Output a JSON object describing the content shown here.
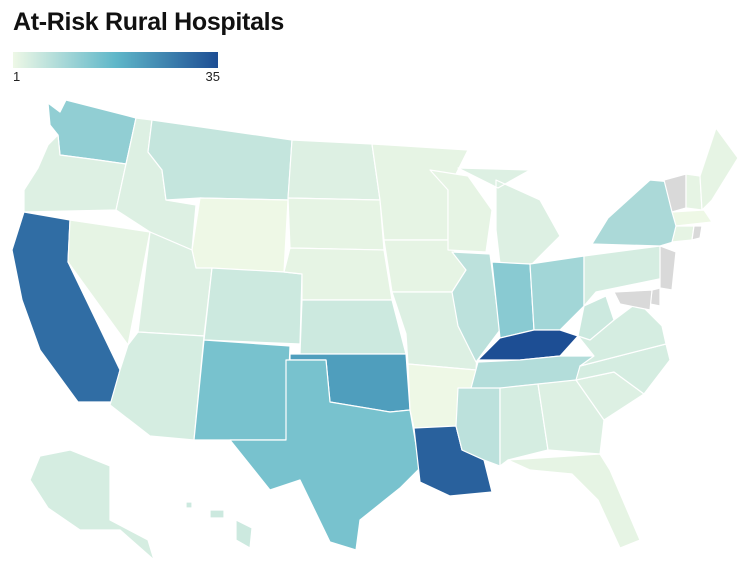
{
  "title": "At-Risk Rural Hospitals",
  "legend": {
    "min_label": "1",
    "max_label": "35",
    "color_low": "#eef8e6",
    "color_mid": "#5fb7c9",
    "color_high": "#1d4e94"
  },
  "colors": {
    "no_data": "#d9d9d9",
    "border": "#ffffff"
  },
  "map_data": {
    "type": "choropleth",
    "region": "United States",
    "value_range": [
      1,
      35
    ],
    "states": [
      {
        "id": "WA",
        "value": 12
      },
      {
        "id": "OR",
        "value": 3
      },
      {
        "id": "CA",
        "value": 30
      },
      {
        "id": "NV",
        "value": 2
      },
      {
        "id": "ID",
        "value": 3
      },
      {
        "id": "MT",
        "value": 6
      },
      {
        "id": "WY",
        "value": 1
      },
      {
        "id": "UT",
        "value": 3
      },
      {
        "id": "AZ",
        "value": 4
      },
      {
        "id": "CO",
        "value": 5
      },
      {
        "id": "NM",
        "value": 15
      },
      {
        "id": "ND",
        "value": 3
      },
      {
        "id": "SD",
        "value": 2
      },
      {
        "id": "NE",
        "value": 2
      },
      {
        "id": "KS",
        "value": 5
      },
      {
        "id": "OK",
        "value": 22
      },
      {
        "id": "TX",
        "value": 15
      },
      {
        "id": "MN",
        "value": 2
      },
      {
        "id": "IA",
        "value": 2
      },
      {
        "id": "MO",
        "value": 3
      },
      {
        "id": "AR",
        "value": 1
      },
      {
        "id": "LA",
        "value": 32
      },
      {
        "id": "WI",
        "value": 2
      },
      {
        "id": "IL",
        "value": 7
      },
      {
        "id": "MI",
        "value": 3
      },
      {
        "id": "IN",
        "value": 13
      },
      {
        "id": "OH",
        "value": 10
      },
      {
        "id": "KY",
        "value": 35
      },
      {
        "id": "TN",
        "value": 8
      },
      {
        "id": "MS",
        "value": 7
      },
      {
        "id": "AL",
        "value": 4
      },
      {
        "id": "GA",
        "value": 3
      },
      {
        "id": "FL",
        "value": 2
      },
      {
        "id": "SC",
        "value": 3
      },
      {
        "id": "NC",
        "value": 4
      },
      {
        "id": "VA",
        "value": 4
      },
      {
        "id": "WV",
        "value": 5
      },
      {
        "id": "PA",
        "value": 4
      },
      {
        "id": "NY",
        "value": 9
      },
      {
        "id": "VT",
        "value": null
      },
      {
        "id": "NH",
        "value": 2
      },
      {
        "id": "ME",
        "value": 2
      },
      {
        "id": "MA",
        "value": 1
      },
      {
        "id": "CT",
        "value": 2
      },
      {
        "id": "RI",
        "value": null
      },
      {
        "id": "NJ",
        "value": null
      },
      {
        "id": "DE",
        "value": null
      },
      {
        "id": "MD",
        "value": null
      },
      {
        "id": "AK",
        "value": 4
      },
      {
        "id": "HI",
        "value": 5
      }
    ]
  }
}
